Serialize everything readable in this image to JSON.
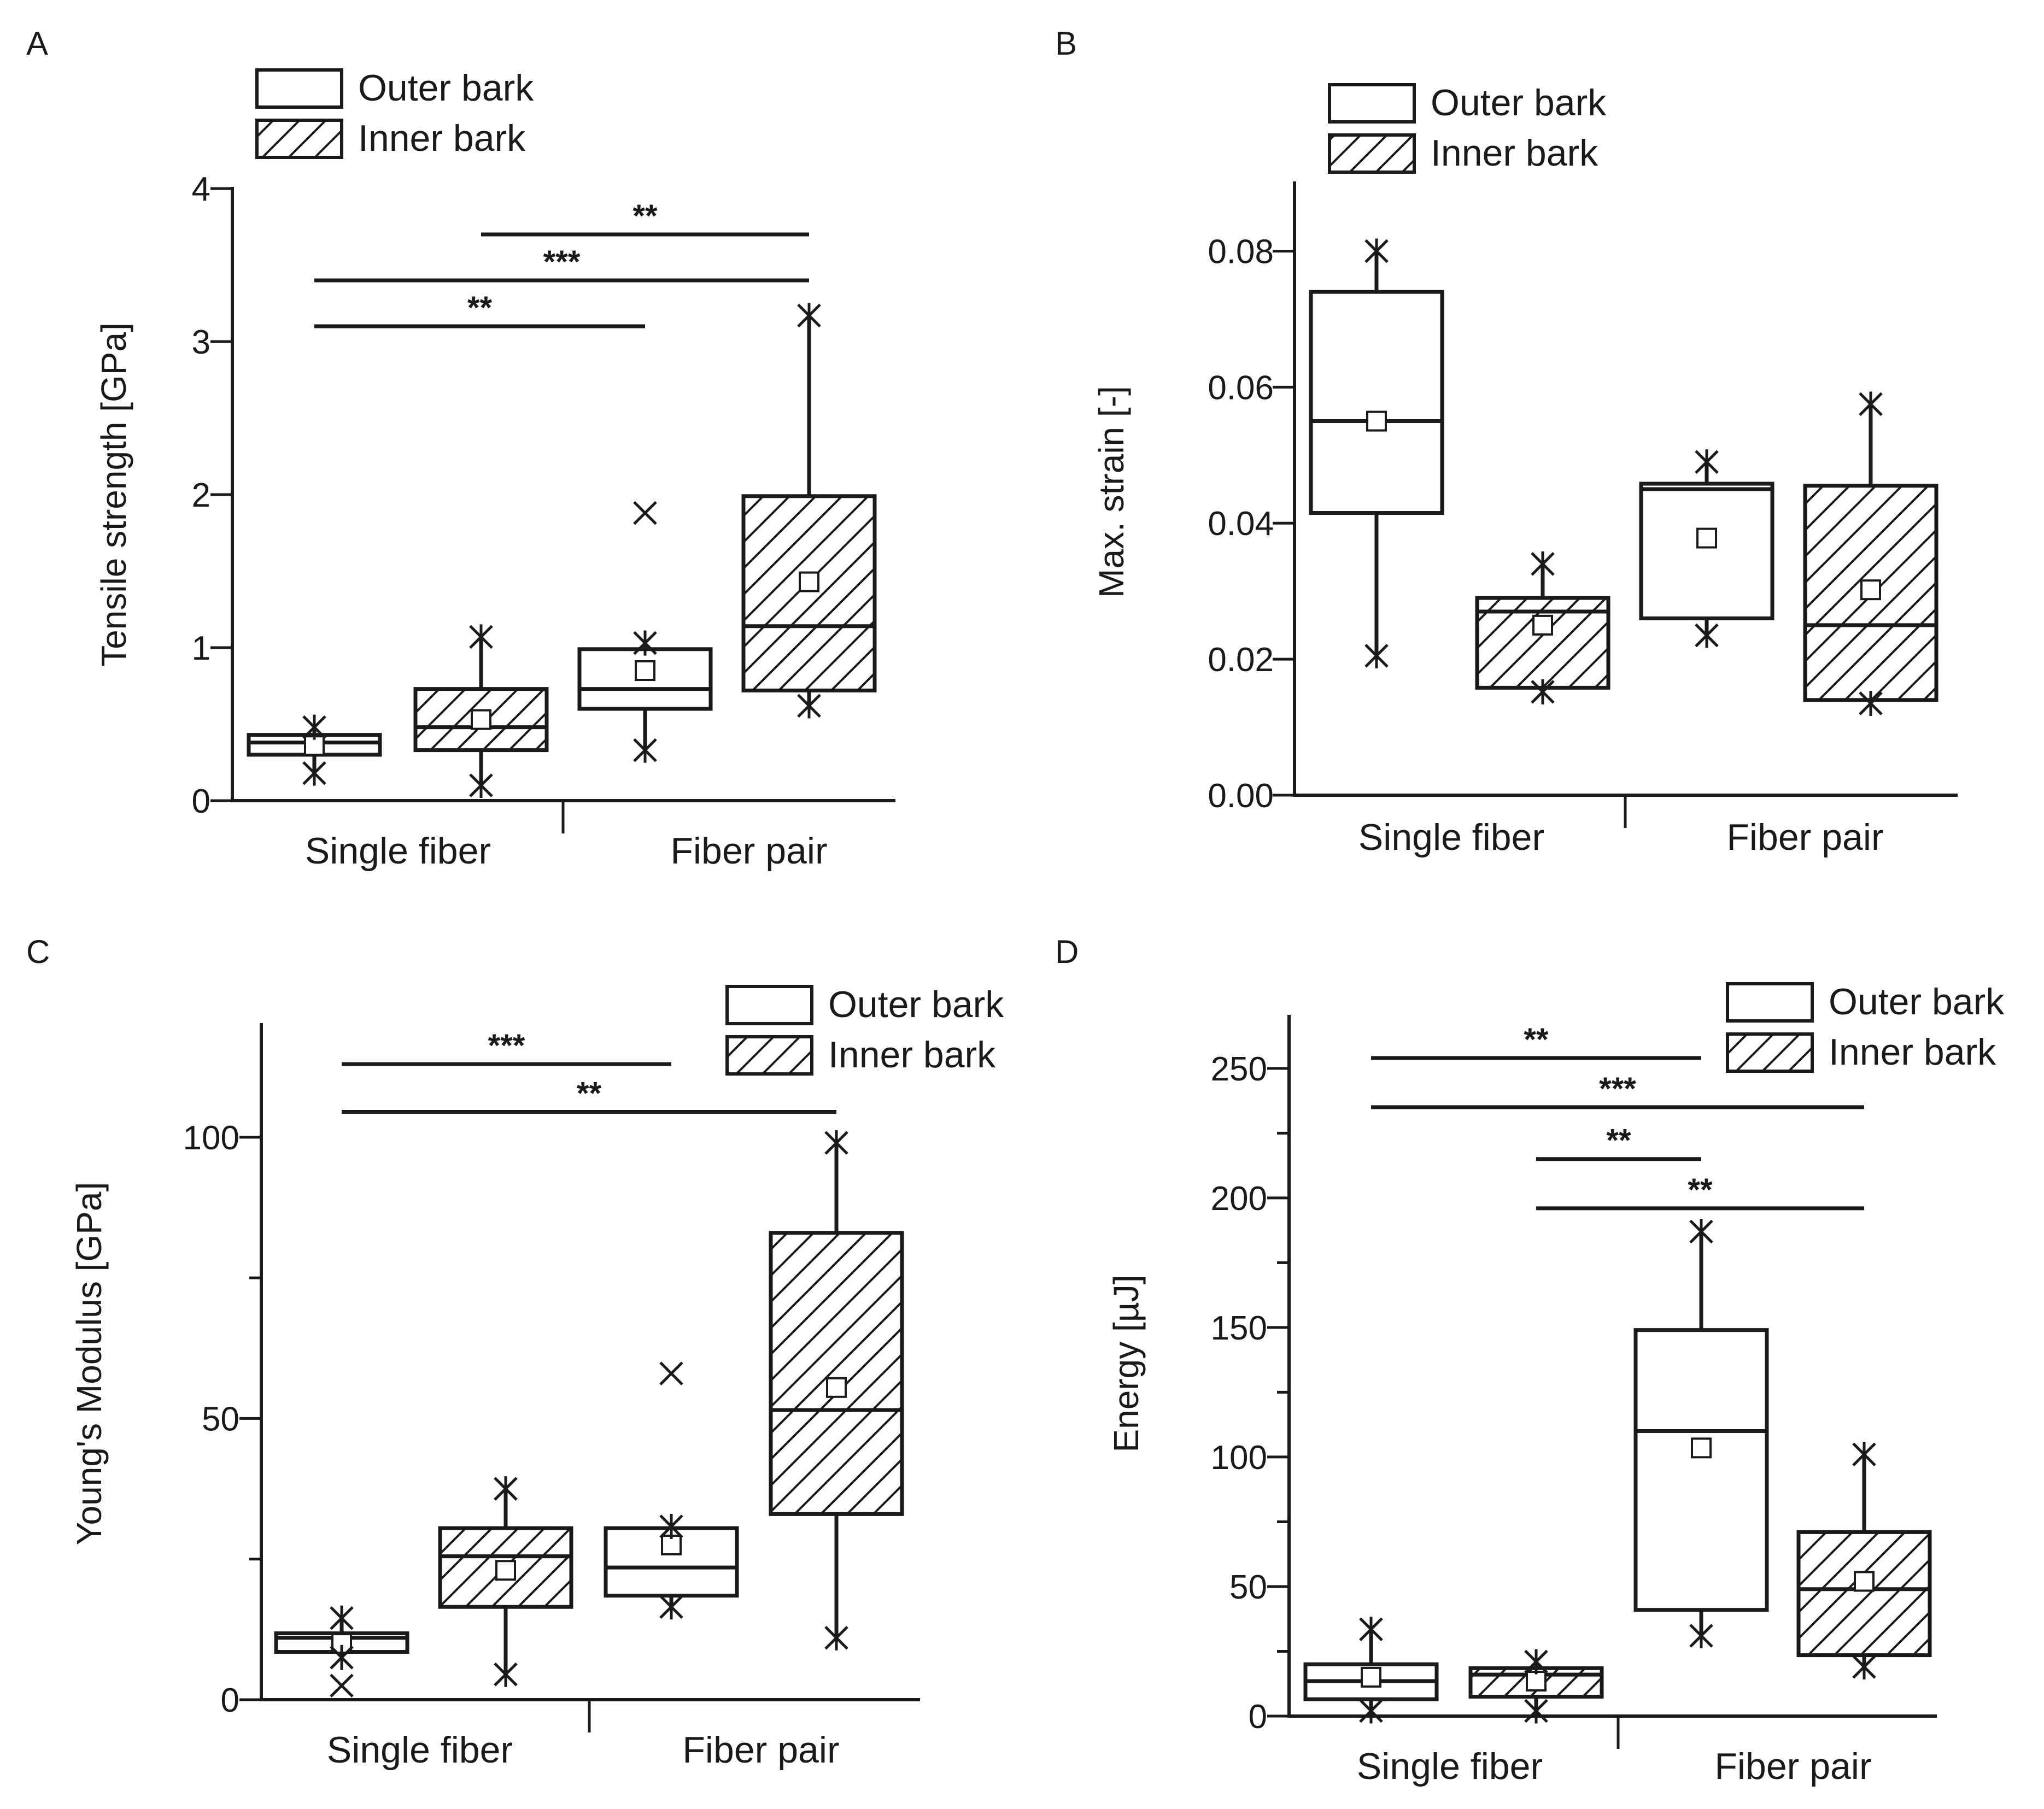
{
  "chart_data": [
    {
      "panel": "A",
      "type": "box",
      "ylabel": "Tensile strength [GPa]",
      "ylim": [
        0,
        4
      ],
      "yticks": [
        0,
        1,
        2,
        3,
        4
      ],
      "ytick_labels": [
        "0",
        "1",
        "2",
        "3",
        "4"
      ],
      "categories": [
        "Single fiber",
        "Fiber pair"
      ],
      "legend": [
        "Outer bark",
        "Inner bark"
      ],
      "legend_position": "top-left",
      "boxes": [
        {
          "category": "Single fiber",
          "series": "Outer bark",
          "min": 0.18,
          "q1": 0.3,
          "median": 0.38,
          "q3": 0.43,
          "max": 0.48,
          "mean": 0.36,
          "outliers": []
        },
        {
          "category": "Single fiber",
          "series": "Inner bark",
          "min": 0.1,
          "q1": 0.33,
          "median": 0.48,
          "q3": 0.73,
          "max": 1.07,
          "mean": 0.53,
          "outliers": []
        },
        {
          "category": "Fiber pair",
          "series": "Outer bark",
          "min": 0.33,
          "q1": 0.6,
          "median": 0.73,
          "q3": 0.99,
          "max": 1.03,
          "mean": 0.85,
          "outliers": [
            1.88
          ]
        },
        {
          "category": "Fiber pair",
          "series": "Inner bark",
          "min": 0.62,
          "q1": 0.72,
          "median": 1.14,
          "q3": 1.99,
          "max": 3.17,
          "mean": 1.43,
          "outliers": []
        }
      ],
      "significance": [
        {
          "from": "Single fiber / Outer bark",
          "to": "Fiber pair / Outer bark",
          "label": "**",
          "level": 3.1
        },
        {
          "from": "Single fiber / Outer bark",
          "to": "Fiber pair / Inner bark",
          "label": "***",
          "level": 3.4
        },
        {
          "from": "Single fiber / Inner bark",
          "to": "Fiber pair / Inner bark",
          "label": "**",
          "level": 3.7
        }
      ]
    },
    {
      "panel": "B",
      "type": "box",
      "ylabel": "Max. strain [-]",
      "ylim": [
        0,
        0.09
      ],
      "yticks": [
        0,
        0.02,
        0.04,
        0.06,
        0.08
      ],
      "ytick_labels": [
        "0.00",
        "0.02",
        "0.04",
        "0.06",
        "0.08"
      ],
      "categories": [
        "Single fiber",
        "Fiber pair"
      ],
      "legend": [
        "Outer bark",
        "Inner bark"
      ],
      "legend_position": "top-left",
      "boxes": [
        {
          "category": "Single fiber",
          "series": "Outer bark",
          "min": 0.0205,
          "q1": 0.0415,
          "median": 0.055,
          "q3": 0.074,
          "max": 0.08,
          "mean": 0.055,
          "outliers": []
        },
        {
          "category": "Single fiber",
          "series": "Inner bark",
          "min": 0.0152,
          "q1": 0.0158,
          "median": 0.027,
          "q3": 0.029,
          "max": 0.034,
          "mean": 0.025,
          "outliers": []
        },
        {
          "category": "Fiber pair",
          "series": "Outer bark",
          "min": 0.0235,
          "q1": 0.026,
          "median": 0.045,
          "q3": 0.0458,
          "max": 0.049,
          "mean": 0.0378,
          "outliers": []
        },
        {
          "category": "Fiber pair",
          "series": "Inner bark",
          "min": 0.0135,
          "q1": 0.014,
          "median": 0.025,
          "q3": 0.0455,
          "max": 0.0575,
          "mean": 0.0302,
          "outliers": []
        }
      ],
      "significance": []
    },
    {
      "panel": "C",
      "type": "box",
      "ylabel": "Young's Modulus [GPa]",
      "ylim": [
        0,
        120
      ],
      "yticks": [
        0,
        25,
        50,
        75,
        100
      ],
      "ytick_labels": [
        "0",
        "",
        "50",
        "",
        "100"
      ],
      "categories": [
        "Single fiber",
        "Fiber pair"
      ],
      "legend": [
        "Outer bark",
        "Inner bark"
      ],
      "legend_position": "top-right",
      "boxes": [
        {
          "category": "Single fiber",
          "series": "Outer bark",
          "min": 7.5,
          "q1": 8.5,
          "median": 11,
          "q3": 11.8,
          "max": 14.5,
          "mean": 10,
          "outliers": [
            2.5
          ]
        },
        {
          "category": "Single fiber",
          "series": "Inner bark",
          "min": 4.5,
          "q1": 16.5,
          "median": 25.5,
          "q3": 30.5,
          "max": 37.5,
          "mean": 23,
          "outliers": []
        },
        {
          "category": "Fiber pair",
          "series": "Outer bark",
          "min": 16.5,
          "q1": 18.5,
          "median": 23.5,
          "q3": 30.5,
          "max": 30.8,
          "mean": 27.5,
          "outliers": [
            58
          ]
        },
        {
          "category": "Fiber pair",
          "series": "Inner bark",
          "min": 11,
          "q1": 33,
          "median": 51.5,
          "q3": 83,
          "max": 99,
          "mean": 55.5,
          "outliers": []
        }
      ],
      "significance": [
        {
          "from": "Single fiber / Outer bark",
          "to": "Fiber pair / Outer bark",
          "label": "***",
          "level": 113
        },
        {
          "from": "Single fiber / Outer bark",
          "to": "Fiber pair / Inner bark",
          "label": "**",
          "level": 104.5
        }
      ]
    },
    {
      "panel": "D",
      "type": "box",
      "ylabel": "Energy [µJ]",
      "ylim": [
        0,
        270
      ],
      "yticks": [
        0,
        25,
        50,
        75,
        100,
        125,
        150,
        175,
        200,
        225,
        250
      ],
      "ytick_labels": [
        "0",
        "",
        "50",
        "",
        "100",
        "",
        "150",
        "",
        "200",
        "",
        "250"
      ],
      "categories": [
        "Single fiber",
        "Fiber pair"
      ],
      "legend": [
        "Outer bark",
        "Inner bark"
      ],
      "legend_position": "top-right",
      "boxes": [
        {
          "category": "Single fiber",
          "series": "Outer bark",
          "min": 2,
          "q1": 6.5,
          "median": 13.5,
          "q3": 20,
          "max": 33.5,
          "mean": 15,
          "outliers": []
        },
        {
          "category": "Single fiber",
          "series": "Inner bark",
          "min": 2,
          "q1": 7.5,
          "median": 16,
          "q3": 18.5,
          "max": 21,
          "mean": 13.5,
          "outliers": []
        },
        {
          "category": "Fiber pair",
          "series": "Outer bark",
          "min": 31,
          "q1": 41,
          "median": 110,
          "q3": 149,
          "max": 187,
          "mean": 103.5,
          "outliers": []
        },
        {
          "category": "Fiber pair",
          "series": "Inner bark",
          "min": 19,
          "q1": 23.5,
          "median": 49,
          "q3": 71,
          "max": 101,
          "mean": 52,
          "outliers": []
        }
      ],
      "significance": [
        {
          "from": "Single fiber / Outer bark",
          "to": "Fiber pair / Outer bark",
          "label": "**",
          "level": 254
        },
        {
          "from": "Single fiber / Outer bark",
          "to": "Fiber pair / Inner bark",
          "label": "***",
          "level": 235
        },
        {
          "from": "Single fiber / Inner bark",
          "to": "Fiber pair / Outer bark",
          "label": "**",
          "level": 215
        },
        {
          "from": "Single fiber / Inner bark",
          "to": "Fiber pair / Inner bark",
          "label": "**",
          "level": 196
        }
      ]
    }
  ]
}
